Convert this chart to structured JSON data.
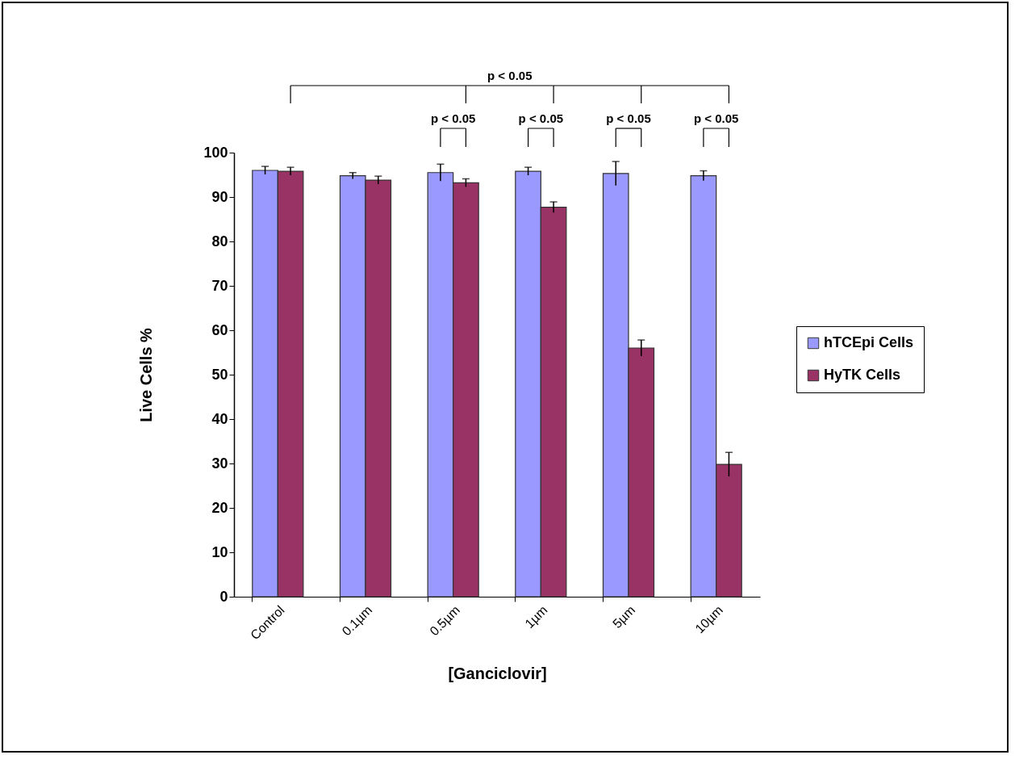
{
  "chart_data": {
    "type": "bar",
    "xlabel": "[Ganciclovir]",
    "ylabel": "Live Cells %",
    "categories": [
      "Control",
      "0.1µm",
      "0.5µm",
      "1µm",
      "5µm",
      "10µm"
    ],
    "series": [
      {
        "name": "hTCEpi Cells",
        "color": "#9999ff",
        "values": [
          96,
          94.8,
          95.5,
          95.8,
          95.3,
          94.8
        ],
        "errors": [
          0.9,
          0.7,
          1.9,
          0.9,
          2.7,
          1.1
        ]
      },
      {
        "name": "HyTK Cells",
        "color": "#993366",
        "values": [
          95.8,
          93.8,
          93.2,
          87.7,
          56,
          29.8
        ],
        "errors": [
          0.9,
          0.9,
          0.9,
          1.2,
          1.8,
          2.7
        ]
      }
    ],
    "ylim": [
      0,
      100
    ],
    "yticks": [
      0,
      10,
      20,
      30,
      40,
      50,
      60,
      70,
      80,
      90,
      100
    ],
    "grid": false,
    "legend": "right",
    "annotations": [
      "p < 0.05",
      "p < 0.05",
      "p < 0.05",
      "p < 0.05",
      "p < 0.05"
    ]
  }
}
